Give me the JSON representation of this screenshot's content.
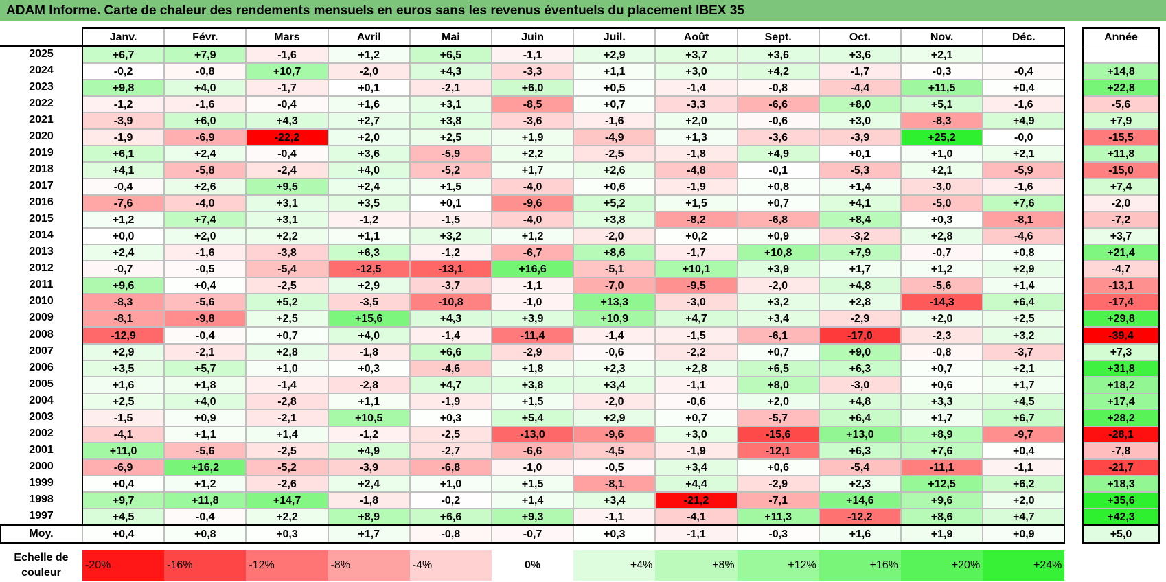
{
  "title": "ADAM Informe. Carte de chaleur des rendements mensuels en euros sans les revenus éventuels du placement IBEX 35",
  "chart_data": {
    "type": "heatmap",
    "title": "ADAM Informe. Carte de chaleur des rendements mensuels en euros sans les revenus éventuels du placement IBEX 35",
    "columns": [
      "Janv.",
      "Févr.",
      "Mars",
      "Avril",
      "Mai",
      "Juin",
      "Juil.",
      "Août",
      "Sept.",
      "Oct.",
      "Nov.",
      "Déc."
    ],
    "annual_label": "Année",
    "rows": [
      {
        "year": "2025",
        "values": [
          "+6,7",
          "+7,9",
          "-1,6",
          "+1,2",
          "+6,5",
          "-1,1",
          "+2,9",
          "+3,7",
          "+3,6",
          "+3,6",
          "+2,1",
          ""
        ],
        "annual": ""
      },
      {
        "year": "2024",
        "values": [
          "-0,2",
          "-0,8",
          "+10,7",
          "-2,0",
          "+4,3",
          "-3,3",
          "+1,1",
          "+3,0",
          "+4,2",
          "-1,7",
          "-0,3",
          "-0,4"
        ],
        "annual": "+14,8"
      },
      {
        "year": "2023",
        "values": [
          "+9,8",
          "+4,0",
          "-1,7",
          "+0,1",
          "-2,1",
          "+6,0",
          "+0,5",
          "-1,4",
          "-0,8",
          "-4,4",
          "+11,5",
          "+0,4"
        ],
        "annual": "+22,8"
      },
      {
        "year": "2022",
        "values": [
          "-1,2",
          "-1,6",
          "-0,4",
          "+1,6",
          "+3,1",
          "-8,5",
          "+0,7",
          "-3,3",
          "-6,6",
          "+8,0",
          "+5,1",
          "-1,6"
        ],
        "annual": "-5,6"
      },
      {
        "year": "2021",
        "values": [
          "-3,9",
          "+6,0",
          "+4,3",
          "+2,7",
          "+3,8",
          "-3,6",
          "-1,6",
          "+2,0",
          "-0,6",
          "+3,0",
          "-8,3",
          "+4,9"
        ],
        "annual": "+7,9"
      },
      {
        "year": "2020",
        "values": [
          "-1,9",
          "-6,9",
          "-22,2",
          "+2,0",
          "+2,5",
          "+1,9",
          "-4,9",
          "+1,3",
          "-3,6",
          "-3,9",
          "+25,2",
          "-0,0"
        ],
        "annual": "-15,5"
      },
      {
        "year": "2019",
        "values": [
          "+6,1",
          "+2,4",
          "-0,4",
          "+3,6",
          "-5,9",
          "+2,2",
          "-2,5",
          "-1,8",
          "+4,9",
          "+0,1",
          "+1,0",
          "+2,1"
        ],
        "annual": "+11,8"
      },
      {
        "year": "2018",
        "values": [
          "+4,1",
          "-5,8",
          "-2,4",
          "+4,0",
          "-5,2",
          "+1,7",
          "+2,6",
          "-4,8",
          "-0,1",
          "-5,3",
          "+2,1",
          "-5,9"
        ],
        "annual": "-15,0"
      },
      {
        "year": "2017",
        "values": [
          "-0,4",
          "+2,6",
          "+9,5",
          "+2,4",
          "+1,5",
          "-4,0",
          "+0,6",
          "-1,9",
          "+0,8",
          "+1,4",
          "-3,0",
          "-1,6"
        ],
        "annual": "+7,4"
      },
      {
        "year": "2016",
        "values": [
          "-7,6",
          "-4,0",
          "+3,1",
          "+3,5",
          "+0,1",
          "-9,6",
          "+5,2",
          "+1,5",
          "+0,7",
          "+4,1",
          "-5,0",
          "+7,6"
        ],
        "annual": "-2,0"
      },
      {
        "year": "2015",
        "values": [
          "+1,2",
          "+7,4",
          "+3,1",
          "-1,2",
          "-1,5",
          "-4,0",
          "+3,8",
          "-8,2",
          "-6,8",
          "+8,4",
          "+0,3",
          "-8,1"
        ],
        "annual": "-7,2"
      },
      {
        "year": "2014",
        "values": [
          "+0,0",
          "+2,0",
          "+2,2",
          "+1,1",
          "+3,2",
          "+1,2",
          "-2,0",
          "+0,2",
          "+0,9",
          "-3,2",
          "+2,8",
          "-4,6"
        ],
        "annual": "+3,7"
      },
      {
        "year": "2013",
        "values": [
          "+2,4",
          "-1,6",
          "-3,8",
          "+6,3",
          "-1,2",
          "-6,7",
          "+8,6",
          "-1,7",
          "+10,8",
          "+7,9",
          "-0,7",
          "+0,8"
        ],
        "annual": "+21,4"
      },
      {
        "year": "2012",
        "values": [
          "-0,7",
          "-0,5",
          "-5,4",
          "-12,5",
          "-13,1",
          "+16,6",
          "-5,1",
          "+10,1",
          "+3,9",
          "+1,7",
          "+1,2",
          "+2,9"
        ],
        "annual": "-4,7"
      },
      {
        "year": "2011",
        "values": [
          "+9,6",
          "+0,4",
          "-2,5",
          "+2,9",
          "-3,7",
          "-1,1",
          "-7,0",
          "-9,5",
          "-2,0",
          "+4,8",
          "-5,6",
          "+1,4"
        ],
        "annual": "-13,1"
      },
      {
        "year": "2010",
        "values": [
          "-8,3",
          "-5,6",
          "+5,2",
          "-3,5",
          "-10,8",
          "-1,0",
          "+13,3",
          "-3,0",
          "+3,2",
          "+2,8",
          "-14,3",
          "+6,4"
        ],
        "annual": "-17,4"
      },
      {
        "year": "2009",
        "values": [
          "-8,1",
          "-9,8",
          "+2,5",
          "+15,6",
          "+4,3",
          "+3,9",
          "+10,9",
          "+4,7",
          "+3,4",
          "-2,9",
          "+2,0",
          "+2,5"
        ],
        "annual": "+29,8"
      },
      {
        "year": "2008",
        "values": [
          "-12,9",
          "-0,4",
          "+0,7",
          "+4,0",
          "-1,4",
          "-11,4",
          "-1,4",
          "-1,5",
          "-6,1",
          "-17,0",
          "-2,3",
          "+3,2"
        ],
        "annual": "-39,4"
      },
      {
        "year": "2007",
        "values": [
          "+2,9",
          "-2,1",
          "+2,8",
          "-1,8",
          "+6,6",
          "-2,9",
          "-0,6",
          "-2,2",
          "+0,7",
          "+9,0",
          "-0,8",
          "-3,7"
        ],
        "annual": "+7,3"
      },
      {
        "year": "2006",
        "values": [
          "+3,5",
          "+5,7",
          "+1,0",
          "+0,3",
          "-4,6",
          "+1,8",
          "+2,3",
          "+2,8",
          "+6,5",
          "+6,3",
          "+0,7",
          "+2,1"
        ],
        "annual": "+31,8"
      },
      {
        "year": "2005",
        "values": [
          "+1,6",
          "+1,8",
          "-1,4",
          "-2,8",
          "+4,7",
          "+3,8",
          "+3,4",
          "-1,1",
          "+8,0",
          "-3,0",
          "+0,6",
          "+1,7"
        ],
        "annual": "+18,2"
      },
      {
        "year": "2004",
        "values": [
          "+2,5",
          "+4,0",
          "-2,8",
          "+1,1",
          "-1,9",
          "+1,5",
          "-2,0",
          "-0,6",
          "+2,0",
          "+4,8",
          "+3,3",
          "+4,5"
        ],
        "annual": "+17,4"
      },
      {
        "year": "2003",
        "values": [
          "-1,5",
          "+0,9",
          "-2,1",
          "+10,5",
          "+0,3",
          "+5,4",
          "+2,9",
          "+0,7",
          "-5,7",
          "+6,4",
          "+1,7",
          "+6,7"
        ],
        "annual": "+28,2"
      },
      {
        "year": "2002",
        "values": [
          "-4,1",
          "+1,1",
          "+1,4",
          "-1,2",
          "-2,5",
          "-13,0",
          "-9,6",
          "+3,0",
          "-15,6",
          "+13,0",
          "+8,9",
          "-9,7"
        ],
        "annual": "-28,1"
      },
      {
        "year": "2001",
        "values": [
          "+11,0",
          "-5,6",
          "-2,5",
          "+4,9",
          "-2,7",
          "-6,6",
          "-4,5",
          "-1,9",
          "-12,1",
          "+6,3",
          "+7,6",
          "+0,4"
        ],
        "annual": "-7,8"
      },
      {
        "year": "2000",
        "values": [
          "-6,9",
          "+16,2",
          "-5,2",
          "-3,9",
          "-6,8",
          "-1,0",
          "-0,5",
          "+3,4",
          "+0,6",
          "-5,4",
          "-11,1",
          "-1,1"
        ],
        "annual": "-21,7"
      },
      {
        "year": "1999",
        "values": [
          "+0,4",
          "+1,2",
          "-2,6",
          "+2,4",
          "+1,0",
          "+1,5",
          "-8,1",
          "+4,4",
          "-2,9",
          "+2,3",
          "+12,5",
          "+6,2"
        ],
        "annual": "+18,3"
      },
      {
        "year": "1998",
        "values": [
          "+9,7",
          "+11,8",
          "+14,7",
          "-1,8",
          "-0,2",
          "+1,4",
          "+3,4",
          "-21,2",
          "-7,1",
          "+14,6",
          "+9,6",
          "+2,0"
        ],
        "annual": "+35,6"
      },
      {
        "year": "1997",
        "values": [
          "+4,5",
          "-0,4",
          "+2,2",
          "+8,9",
          "+6,6",
          "+9,3",
          "-1,1",
          "-4,1",
          "+11,3",
          "-12,2",
          "+8,6",
          "+4,7"
        ],
        "annual": "+42,3"
      }
    ],
    "average": {
      "label": "Moy.",
      "values": [
        "+0,4",
        "+0,8",
        "+0,3",
        "+1,7",
        "-0,8",
        "-0,7",
        "+0,3",
        "-1,1",
        "-0,3",
        "+1,6",
        "+1,9",
        "+0,9"
      ],
      "annual": "+5,0"
    },
    "scale": {
      "label_line1": "Echelle de",
      "label_line2": "couleur",
      "stops": [
        {
          "label": "-20%",
          "value": -20
        },
        {
          "label": "-16%",
          "value": -16
        },
        {
          "label": "-12%",
          "value": -12
        },
        {
          "label": "-8%",
          "value": -8
        },
        {
          "label": "-4%",
          "value": -4
        },
        {
          "label": "0%",
          "value": 0
        },
        {
          "label": "+4%",
          "value": 4
        },
        {
          "label": "+8%",
          "value": 8
        },
        {
          "label": "+12%",
          "value": 12
        },
        {
          "label": "+16%",
          "value": 16
        },
        {
          "label": "+20%",
          "value": 20
        },
        {
          "label": "+24%",
          "value": 24
        }
      ]
    },
    "colors": {
      "title_bg": "#7dc57a",
      "negative_max": "#ff0000",
      "zero": "#ffffff",
      "positive_max": "#2ef02e",
      "grid": "#bfbfbf"
    }
  }
}
